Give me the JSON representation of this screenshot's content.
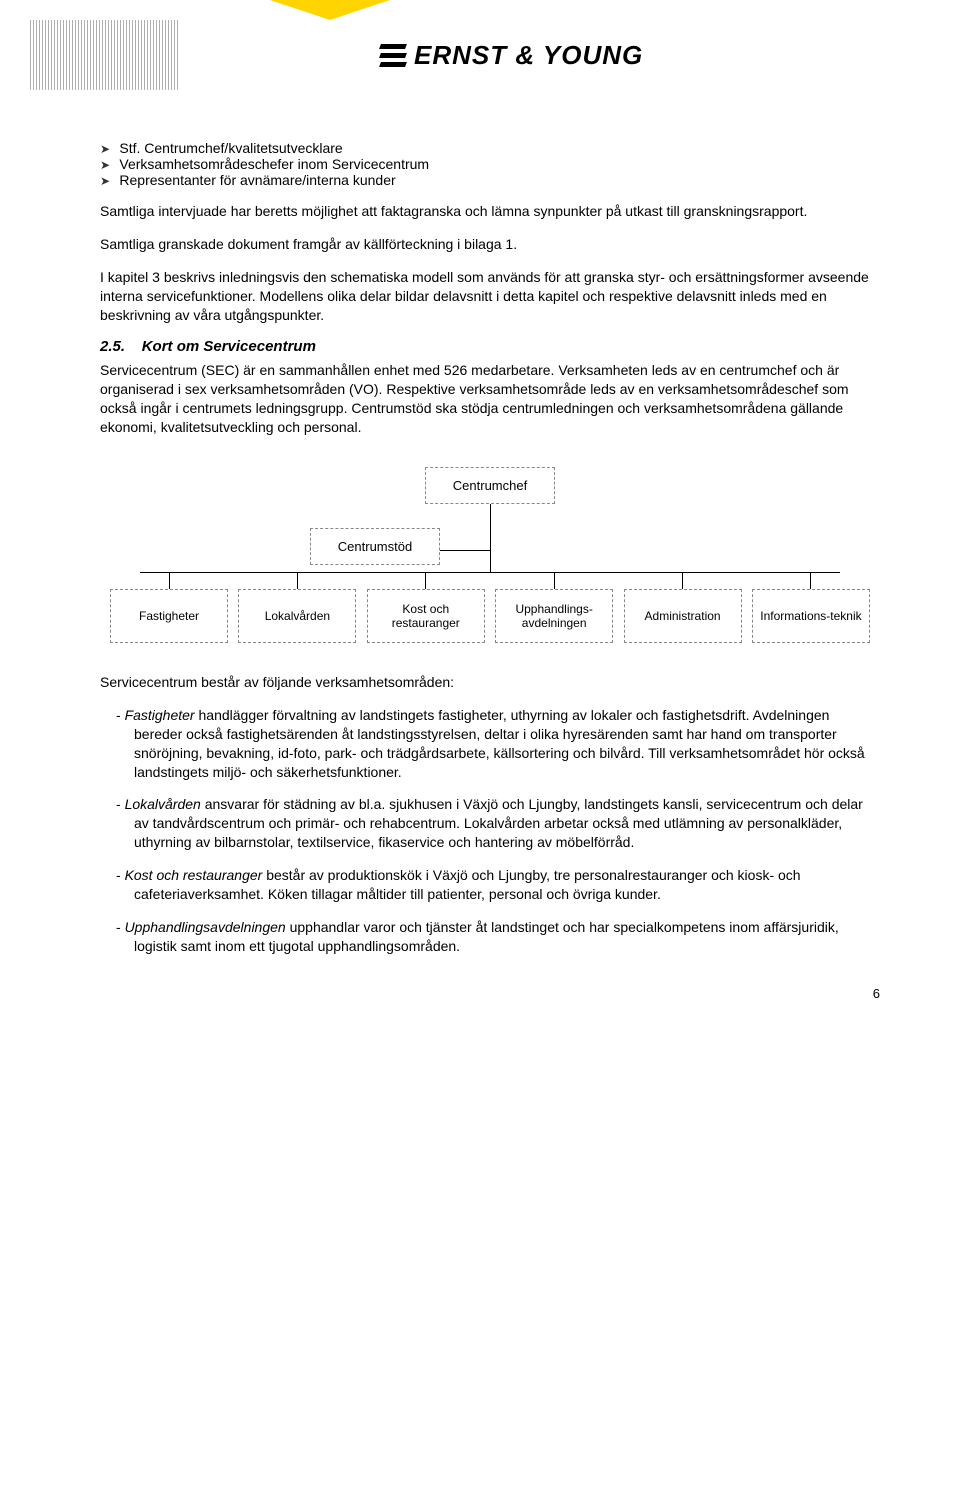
{
  "logo_text": "ERNST & YOUNG",
  "bullets_top": [
    "Stf. Centrumchef/kvalitetsutvecklare",
    "Verksamhetsområdeschefer inom Servicecentrum",
    "Representanter för avnämare/interna kunder"
  ],
  "para1": "Samtliga intervjuade har beretts möjlighet att faktagranska och lämna synpunkter på utkast till granskningsrapport.",
  "para2": "Samtliga granskade dokument framgår av källförteckning i bilaga 1.",
  "para3": "I kapitel 3 beskrivs inledningsvis den schematiska modell som används för att granska styr- och ersättningsformer avseende interna servicefunktioner. Modellens olika delar bildar delavsnitt i detta kapitel och respektive delavsnitt inleds med en beskrivning av våra utgångspunkter.",
  "section_num": "2.5.",
  "section_title": "Kort om Servicecentrum",
  "para4": "Servicecentrum (SEC) är en sammanhållen enhet med 526 medarbetare. Verksamheten leds av en centrumchef och är organiserad i sex verksamhetsområden (VO). Respektive verksamhetsområde leds av en verksamhetsområdeschef som också ingår i centrumets ledningsgrupp. Centrumstöd ska stödja centrumledningen och verksamhetsområdena gällande ekonomi, kvalitetsutveckling och personal.",
  "org": {
    "top": "Centrumchef",
    "mid": "Centrumstöd",
    "leaves": [
      "Fastigheter",
      "Lokalvården",
      "Kost och restauranger",
      "Upphandlings-avdelningen",
      "Administration",
      "Informations-teknik"
    ]
  },
  "para5": "Servicecentrum består av följande verksamhetsområden:",
  "areas": [
    {
      "name": "Fastigheter",
      "text": " handlägger förvaltning av landstingets fastigheter, uthyrning av lokaler och fastighetsdrift. Avdelningen bereder också fastighetsärenden åt landstingsstyrelsen, deltar i olika hyresärenden samt har hand om transporter snöröjning, bevakning, id-foto, park- och trädgårdsarbete, källsortering och bilvård. Till verksamhetsområdet hör också landstingets miljö- och säkerhetsfunktioner."
    },
    {
      "name": "Lokalvården",
      "text": " ansvarar för städning av bl.a. sjukhusen i Växjö och Ljungby, landstingets kansli, servicecentrum och delar av tandvårdscentrum och primär- och rehabcentrum. Lokalvården arbetar också med utlämning av personalkläder, uthyrning av bilbarnstolar, textilservice, fikaservice och hantering av möbelförråd."
    },
    {
      "name": "Kost och restauranger",
      "text": " består av produktionskök i Växjö och Ljungby, tre personalrestauranger och kiosk- och cafeteriaverksamhet. Köken tillagar måltider till patienter, personal och övriga kunder."
    },
    {
      "name": "Upphandlingsavdelningen",
      "text": " upphandlar varor och tjänster åt landstinget och har specialkompetens inom affärsjuridik, logistik samt inom ett tjugotal upphandlingsområden."
    }
  ],
  "page_number": "6"
}
